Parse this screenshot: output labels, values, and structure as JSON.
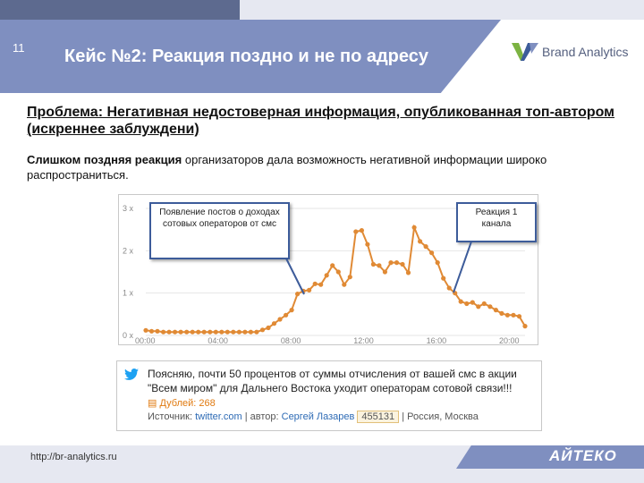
{
  "header": {
    "slide_number": "11",
    "title": "Кейс №2: Реакция поздно и не по адресу",
    "logo_text": "Brand Analytics"
  },
  "problem": "Проблема: Негативная недостоверная информация, опубликованная топ-автором (искреннее заблуждени)",
  "paragraph": {
    "bold": "Слишком поздняя реакция",
    "rest": " организаторов дала возможность негативной информации широко распространиться."
  },
  "chart_data": {
    "type": "line",
    "x_ticks": [
      "00:00",
      "04:00",
      "08:00",
      "12:00",
      "16:00",
      "20:00"
    ],
    "y_ticks": [
      "0 x",
      "1 x",
      "2 x",
      "3 x"
    ],
    "ylim": [
      0,
      3
    ],
    "series": [
      {
        "color": "#e08a35",
        "values": [
          0.12,
          0.1,
          0.1,
          0.08,
          0.08,
          0.08,
          0.08,
          0.08,
          0.08,
          0.08,
          0.08,
          0.08,
          0.08,
          0.08,
          0.08,
          0.08,
          0.08,
          0.08,
          0.08,
          0.08,
          0.13,
          0.18,
          0.28,
          0.38,
          0.48,
          0.6,
          0.98,
          1.05,
          1.07,
          1.22,
          1.2,
          1.42,
          1.65,
          1.5,
          1.2,
          1.38,
          2.45,
          2.48,
          2.15,
          1.68,
          1.65,
          1.5,
          1.72,
          1.72,
          1.68,
          1.48,
          2.55,
          2.22,
          2.1,
          1.95,
          1.72,
          1.35,
          1.12,
          1.0,
          0.8,
          0.75,
          0.78,
          0.68,
          0.75,
          0.68,
          0.6,
          0.52,
          0.48,
          0.48,
          0.45,
          0.22
        ]
      }
    ]
  },
  "callouts": {
    "first": "Появление постов о доходах сотовых операторов от смс",
    "second": "Реакция 1 канала"
  },
  "tweet": {
    "text": "Поясняю, почти 50 процентов от суммы отчисления от вашей смс в акции \"Всем миром\" для Дальнего Востока уходит операторам сотовой связи!!!",
    "likes": "Дублей: 268",
    "source_label": "Источник:",
    "source": "twitter.com",
    "sep1": " | автор:",
    "author": "Сергей Лазарев",
    "id": "455131",
    "sep2": "| Россия, Москва"
  },
  "colors": {
    "header": "#7f8fc0",
    "header_dark": "#5d6a8f",
    "line": "#e08a35",
    "callout_border": "#3d5c9a"
  },
  "footer": {
    "url": "http://br-analytics.ru",
    "brand": "АЙТЕКО"
  }
}
